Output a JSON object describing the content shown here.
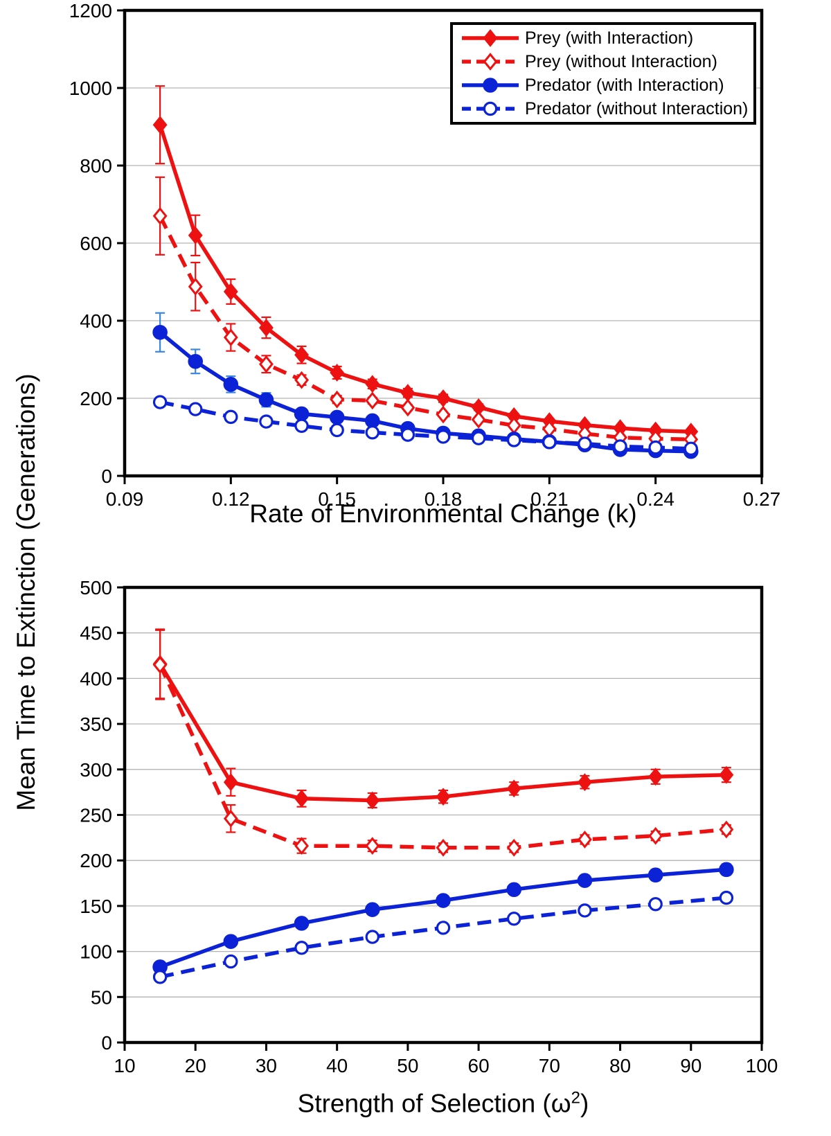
{
  "figure": {
    "background": "#ffffff"
  },
  "colors": {
    "prey": "#ee1111",
    "predator": "#0b22d6",
    "predator_error": "#3b86e0",
    "grid": "#b3b3b3",
    "axis": "#000000",
    "text": "#000000"
  },
  "ylabel": "Mean Time to Extinction (Generations)",
  "bottom_xlabel": {
    "prefix": "Strength of Selection (ω",
    "sup": "2",
    "suffix": ")"
  },
  "legend": {
    "position": "top-right",
    "items": [
      {
        "label": "Prey (with Interaction)",
        "series": "prey_with"
      },
      {
        "label": "Prey (without Interaction)",
        "series": "prey_without"
      },
      {
        "label": "Predator (with Interaction)",
        "series": "pred_with"
      },
      {
        "label": "Predator (without Interaction)",
        "series": "pred_without"
      }
    ]
  },
  "chart_data": [
    {
      "type": "line",
      "title": "",
      "xlabel": "Rate of Environmental Change (k)",
      "ylabel": "Mean Time to Extinction (Generations)",
      "xlim": [
        0.09,
        0.27
      ],
      "ylim": [
        0,
        1200
      ],
      "grid": "horizontal",
      "legend_position": "top-right",
      "xticks": [
        0.09,
        0.12,
        0.15,
        0.18,
        0.21,
        0.24,
        0.27
      ],
      "xtick_labels": [
        "0.09",
        "0.12",
        "0.15",
        "0.18",
        "0.21",
        "0.24",
        "0.27"
      ],
      "yticks": [
        0,
        200,
        400,
        600,
        800,
        1000,
        1200
      ],
      "ytick_labels": [
        "0",
        "200",
        "400",
        "600",
        "800",
        "1000",
        "1200"
      ],
      "x": [
        0.1,
        0.11,
        0.12,
        0.13,
        0.14,
        0.15,
        0.16,
        0.17,
        0.18,
        0.19,
        0.2,
        0.21,
        0.22,
        0.23,
        0.24,
        0.25
      ],
      "series": [
        {
          "id": "prey_with",
          "name": "Prey (with Interaction)",
          "color": "prey",
          "marker": "diamond",
          "fill": "filled",
          "dash": false,
          "values": [
            905,
            620,
            475,
            382,
            312,
            266,
            237,
            214,
            200,
            177,
            154,
            141,
            131,
            123,
            117,
            114
          ],
          "errors": [
            100,
            52,
            32,
            27,
            22,
            16,
            12,
            11,
            10,
            8,
            7,
            6,
            5,
            5,
            5,
            5
          ]
        },
        {
          "id": "prey_without",
          "name": "Prey (without Interaction)",
          "color": "prey",
          "marker": "diamond",
          "fill": "open",
          "dash": true,
          "values": [
            670,
            488,
            357,
            288,
            247,
            197,
            194,
            176,
            158,
            145,
            130,
            121,
            109,
            99,
            96,
            94
          ],
          "errors": [
            100,
            62,
            35,
            22,
            13,
            10,
            8,
            7,
            6,
            5,
            5,
            4,
            4,
            4,
            4,
            4
          ]
        },
        {
          "id": "pred_with",
          "name": "Predator (with Interaction)",
          "color": "predator",
          "error_color": "predator_error",
          "marker": "circle",
          "fill": "filled",
          "dash": false,
          "values": [
            370,
            295,
            236,
            196,
            160,
            151,
            142,
            122,
            110,
            103,
            95,
            88,
            80,
            68,
            65,
            63
          ],
          "errors": [
            50,
            31,
            21,
            18,
            12,
            10,
            8,
            7,
            6,
            5,
            4,
            4,
            4,
            3,
            3,
            3
          ]
        },
        {
          "id": "pred_without",
          "name": "Predator (without Interaction)",
          "color": "predator",
          "error_color": "predator_error",
          "marker": "circle",
          "fill": "open",
          "dash": true,
          "values": [
            190,
            172,
            152,
            140,
            129,
            118,
            112,
            106,
            101,
            97,
            92,
            87,
            83,
            76,
            73,
            70
          ],
          "errors": [
            0,
            0,
            0,
            0,
            0,
            0,
            0,
            0,
            0,
            0,
            0,
            0,
            0,
            0,
            0,
            0
          ]
        }
      ]
    },
    {
      "type": "line",
      "title": "",
      "xlabel": "Strength of Selection (ω2)",
      "ylabel": "Mean Time to Extinction (Generations)",
      "xlim": [
        10,
        100
      ],
      "ylim": [
        0,
        500
      ],
      "grid": "horizontal",
      "xticks": [
        10,
        20,
        30,
        40,
        50,
        60,
        70,
        80,
        90,
        100
      ],
      "xtick_labels": [
        "10",
        "20",
        "30",
        "40",
        "50",
        "60",
        "70",
        "80",
        "90",
        "100"
      ],
      "yticks": [
        0,
        50,
        100,
        150,
        200,
        250,
        300,
        350,
        400,
        450,
        500
      ],
      "ytick_labels": [
        "0",
        "50",
        "100",
        "150",
        "200",
        "250",
        "300",
        "350",
        "400",
        "450",
        "500"
      ],
      "x": [
        15,
        25,
        35,
        45,
        55,
        65,
        75,
        85,
        95
      ],
      "series": [
        {
          "id": "prey_with",
          "name": "Prey (with Interaction)",
          "color": "prey",
          "marker": "diamond",
          "fill": "filled",
          "dash": false,
          "values": [
            416,
            286,
            268,
            266,
            270,
            279,
            286,
            292,
            294
          ],
          "errors": [
            38,
            15,
            9,
            8,
            7,
            7,
            7,
            8,
            8
          ]
        },
        {
          "id": "prey_without",
          "name": "Prey (without Interaction)",
          "color": "prey",
          "marker": "diamond",
          "fill": "open",
          "dash": true,
          "values": [
            415,
            246,
            216,
            216,
            214,
            214,
            223,
            227,
            234
          ],
          "errors": [
            38,
            15,
            8,
            6,
            5,
            5,
            5,
            5,
            5
          ]
        },
        {
          "id": "pred_with",
          "name": "Predator (with Interaction)",
          "color": "predator",
          "error_color": "predator_error",
          "marker": "circle",
          "fill": "filled",
          "dash": false,
          "values": [
            83,
            111,
            131,
            146,
            156,
            168,
            178,
            184,
            190
          ],
          "errors": [
            4,
            4,
            4,
            5,
            5,
            5,
            5,
            6,
            6
          ]
        },
        {
          "id": "pred_without",
          "name": "Predator (without Interaction)",
          "color": "predator",
          "error_color": "predator_error",
          "marker": "circle",
          "fill": "open",
          "dash": true,
          "values": [
            72,
            89,
            104,
            116,
            126,
            136,
            145,
            152,
            159
          ],
          "errors": [
            0,
            0,
            0,
            0,
            0,
            0,
            0,
            0,
            0
          ]
        }
      ]
    }
  ]
}
